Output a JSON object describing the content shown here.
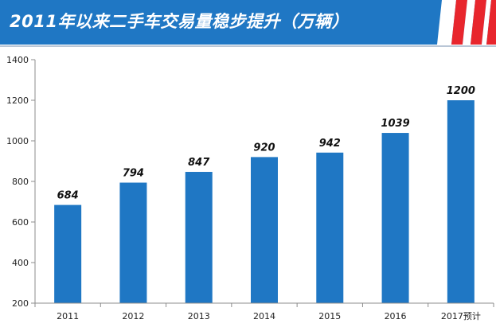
{
  "page": {
    "title": "2011年以来二手车交易量稳步提升（万辆）",
    "accent_color": "#1f77c4",
    "stripe_color": "#e8262d"
  },
  "chart_data": {
    "type": "bar",
    "title": "2011年以来二手车交易量稳步提升（万辆）",
    "categories": [
      "2011",
      "2012",
      "2013",
      "2014",
      "2015",
      "2016",
      "2017预计"
    ],
    "series": [
      {
        "values": [
          684,
          794,
          847,
          920,
          942,
          1039,
          1200
        ]
      }
    ],
    "data_labels": [
      "684",
      "794",
      "847",
      "920",
      "942",
      "1039",
      "1200"
    ],
    "y_ticks": [
      "200",
      "400",
      "600",
      "800",
      "1000",
      "1200",
      "1400"
    ],
    "ylim": [
      200,
      1400
    ],
    "xlabel": "",
    "ylabel": "",
    "grid": false,
    "legend": "none",
    "bar_color": "#1f77c4"
  }
}
